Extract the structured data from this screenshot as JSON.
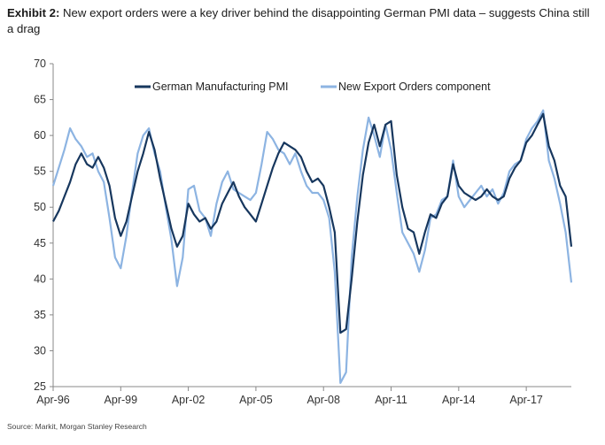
{
  "header": {
    "exhibit_label": "Exhibit 2:",
    "title_text": "New export orders were a key driver behind the disappointing German PMI data – suggests China still a drag"
  },
  "footer": {
    "source": "Source: Markit, Morgan Stanley Research"
  },
  "colors": {
    "pmi": "#17375e",
    "export": "#8db4e2",
    "axis": "#888888"
  },
  "chart_data": {
    "type": "line",
    "title": "New export orders were a key driver behind the disappointing German PMI data – suggests China still a drag",
    "ylim": [
      25,
      70
    ],
    "yticks": [
      25,
      30,
      35,
      40,
      45,
      50,
      55,
      60,
      65,
      70
    ],
    "xlim": [
      1996.25,
      2019.25
    ],
    "xticks": [
      {
        "label": "Apr-96",
        "t": 1996.25
      },
      {
        "label": "Apr-99",
        "t": 1999.25
      },
      {
        "label": "Apr-02",
        "t": 2002.25
      },
      {
        "label": "Apr-05",
        "t": 2005.25
      },
      {
        "label": "Apr-08",
        "t": 2008.25
      },
      {
        "label": "Apr-11",
        "t": 2011.25
      },
      {
        "label": "Apr-14",
        "t": 2014.25
      },
      {
        "label": "Apr-17",
        "t": 2017.25
      }
    ],
    "legend_position": "top-center",
    "series": [
      {
        "name": "German Manufacturing PMI",
        "points": [
          [
            1996.25,
            48.0
          ],
          [
            1996.5,
            49.5
          ],
          [
            1996.75,
            51.5
          ],
          [
            1997.0,
            53.5
          ],
          [
            1997.25,
            56.0
          ],
          [
            1997.5,
            57.5
          ],
          [
            1997.75,
            56.0
          ],
          [
            1998.0,
            55.5
          ],
          [
            1998.25,
            57.0
          ],
          [
            1998.5,
            55.5
          ],
          [
            1998.75,
            53.0
          ],
          [
            1999.0,
            48.5
          ],
          [
            1999.25,
            46.0
          ],
          [
            1999.5,
            48.0
          ],
          [
            1999.75,
            51.5
          ],
          [
            2000.0,
            55.0
          ],
          [
            2000.25,
            57.5
          ],
          [
            2000.5,
            60.5
          ],
          [
            2000.75,
            58.0
          ],
          [
            2001.0,
            54.0
          ],
          [
            2001.25,
            50.5
          ],
          [
            2001.5,
            47.0
          ],
          [
            2001.75,
            44.5
          ],
          [
            2002.0,
            46.0
          ],
          [
            2002.25,
            50.5
          ],
          [
            2002.5,
            49.0
          ],
          [
            2002.75,
            48.0
          ],
          [
            2003.0,
            48.5
          ],
          [
            2003.25,
            47.0
          ],
          [
            2003.5,
            48.0
          ],
          [
            2003.75,
            50.5
          ],
          [
            2004.0,
            52.0
          ],
          [
            2004.25,
            53.5
          ],
          [
            2004.5,
            51.5
          ],
          [
            2004.75,
            50.0
          ],
          [
            2005.0,
            49.0
          ],
          [
            2005.25,
            48.0
          ],
          [
            2005.5,
            50.5
          ],
          [
            2005.75,
            53.0
          ],
          [
            2006.0,
            55.5
          ],
          [
            2006.25,
            57.5
          ],
          [
            2006.5,
            59.0
          ],
          [
            2006.75,
            58.5
          ],
          [
            2007.0,
            58.0
          ],
          [
            2007.25,
            57.0
          ],
          [
            2007.5,
            55.0
          ],
          [
            2007.75,
            53.5
          ],
          [
            2008.0,
            54.0
          ],
          [
            2008.25,
            53.0
          ],
          [
            2008.5,
            50.0
          ],
          [
            2008.75,
            46.5
          ],
          [
            2009.0,
            32.5
          ],
          [
            2009.25,
            33.0
          ],
          [
            2009.5,
            40.0
          ],
          [
            2009.75,
            48.0
          ],
          [
            2010.0,
            54.5
          ],
          [
            2010.25,
            59.0
          ],
          [
            2010.5,
            61.5
          ],
          [
            2010.75,
            58.5
          ],
          [
            2011.0,
            61.5
          ],
          [
            2011.25,
            62.0
          ],
          [
            2011.5,
            54.5
          ],
          [
            2011.75,
            50.0
          ],
          [
            2012.0,
            47.0
          ],
          [
            2012.25,
            46.5
          ],
          [
            2012.5,
            43.5
          ],
          [
            2012.75,
            46.5
          ],
          [
            2013.0,
            49.0
          ],
          [
            2013.25,
            48.5
          ],
          [
            2013.5,
            50.5
          ],
          [
            2013.75,
            51.5
          ],
          [
            2014.0,
            56.0
          ],
          [
            2014.25,
            53.0
          ],
          [
            2014.5,
            52.0
          ],
          [
            2014.75,
            51.5
          ],
          [
            2015.0,
            51.0
          ],
          [
            2015.25,
            51.5
          ],
          [
            2015.5,
            52.5
          ],
          [
            2015.75,
            51.5
          ],
          [
            2016.0,
            51.0
          ],
          [
            2016.25,
            51.5
          ],
          [
            2016.5,
            54.0
          ],
          [
            2016.75,
            55.5
          ],
          [
            2017.0,
            56.5
          ],
          [
            2017.25,
            59.0
          ],
          [
            2017.5,
            60.0
          ],
          [
            2017.75,
            61.5
          ],
          [
            2018.0,
            63.0
          ],
          [
            2018.25,
            58.5
          ],
          [
            2018.5,
            56.5
          ],
          [
            2018.75,
            53.0
          ],
          [
            2019.0,
            51.5
          ],
          [
            2019.25,
            44.5
          ]
        ]
      },
      {
        "name": "New Export Orders component",
        "points": [
          [
            1996.25,
            53.0
          ],
          [
            1996.5,
            55.5
          ],
          [
            1996.75,
            58.0
          ],
          [
            1997.0,
            61.0
          ],
          [
            1997.25,
            59.5
          ],
          [
            1997.5,
            58.5
          ],
          [
            1997.75,
            57.0
          ],
          [
            1998.0,
            57.5
          ],
          [
            1998.25,
            55.0
          ],
          [
            1998.5,
            53.5
          ],
          [
            1998.75,
            48.5
          ],
          [
            1999.0,
            43.0
          ],
          [
            1999.25,
            41.5
          ],
          [
            1999.5,
            46.0
          ],
          [
            1999.75,
            52.0
          ],
          [
            2000.0,
            57.5
          ],
          [
            2000.25,
            60.0
          ],
          [
            2000.5,
            61.0
          ],
          [
            2000.75,
            57.5
          ],
          [
            2001.0,
            55.0
          ],
          [
            2001.25,
            50.0
          ],
          [
            2001.5,
            45.5
          ],
          [
            2001.75,
            39.0
          ],
          [
            2002.0,
            43.0
          ],
          [
            2002.25,
            52.5
          ],
          [
            2002.5,
            53.0
          ],
          [
            2002.75,
            49.5
          ],
          [
            2003.0,
            48.5
          ],
          [
            2003.25,
            46.0
          ],
          [
            2003.5,
            50.5
          ],
          [
            2003.75,
            53.5
          ],
          [
            2004.0,
            55.0
          ],
          [
            2004.25,
            52.5
          ],
          [
            2004.5,
            52.0
          ],
          [
            2004.75,
            51.5
          ],
          [
            2005.0,
            51.0
          ],
          [
            2005.25,
            52.0
          ],
          [
            2005.5,
            56.0
          ],
          [
            2005.75,
            60.5
          ],
          [
            2006.0,
            59.5
          ],
          [
            2006.25,
            58.0
          ],
          [
            2006.5,
            57.5
          ],
          [
            2006.75,
            56.0
          ],
          [
            2007.0,
            57.5
          ],
          [
            2007.25,
            55.0
          ],
          [
            2007.5,
            53.0
          ],
          [
            2007.75,
            52.0
          ],
          [
            2008.0,
            52.0
          ],
          [
            2008.25,
            51.0
          ],
          [
            2008.5,
            48.5
          ],
          [
            2008.75,
            41.0
          ],
          [
            2009.0,
            25.5
          ],
          [
            2009.25,
            27.0
          ],
          [
            2009.5,
            43.0
          ],
          [
            2009.75,
            51.5
          ],
          [
            2010.0,
            58.0
          ],
          [
            2010.25,
            62.5
          ],
          [
            2010.5,
            60.0
          ],
          [
            2010.75,
            57.0
          ],
          [
            2011.0,
            61.5
          ],
          [
            2011.25,
            58.0
          ],
          [
            2011.5,
            52.0
          ],
          [
            2011.75,
            46.5
          ],
          [
            2012.0,
            45.0
          ],
          [
            2012.25,
            43.5
          ],
          [
            2012.5,
            41.0
          ],
          [
            2012.75,
            44.0
          ],
          [
            2013.0,
            48.5
          ],
          [
            2013.25,
            49.0
          ],
          [
            2013.5,
            51.0
          ],
          [
            2013.75,
            51.5
          ],
          [
            2014.0,
            56.5
          ],
          [
            2014.25,
            51.5
          ],
          [
            2014.5,
            50.0
          ],
          [
            2014.75,
            51.0
          ],
          [
            2015.0,
            52.0
          ],
          [
            2015.25,
            53.0
          ],
          [
            2015.5,
            51.5
          ],
          [
            2015.75,
            52.5
          ],
          [
            2016.0,
            50.5
          ],
          [
            2016.25,
            52.0
          ],
          [
            2016.5,
            55.0
          ],
          [
            2016.75,
            56.0
          ],
          [
            2017.0,
            56.5
          ],
          [
            2017.25,
            59.5
          ],
          [
            2017.5,
            61.0
          ],
          [
            2017.75,
            62.0
          ],
          [
            2018.0,
            63.5
          ],
          [
            2018.25,
            56.5
          ],
          [
            2018.5,
            54.0
          ],
          [
            2018.75,
            50.5
          ],
          [
            2019.0,
            46.5
          ],
          [
            2019.25,
            39.5
          ]
        ]
      }
    ]
  }
}
